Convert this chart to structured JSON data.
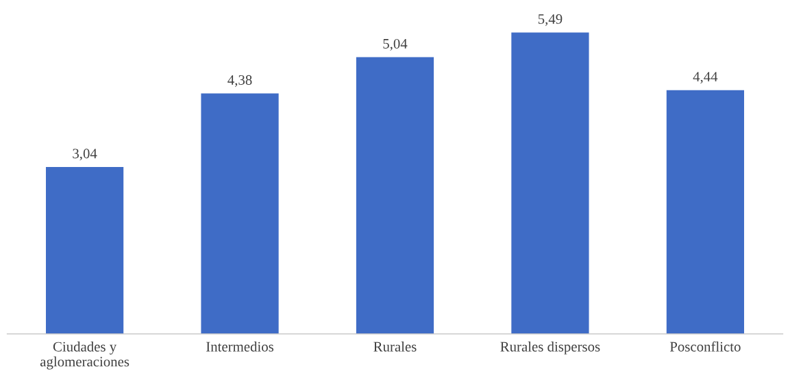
{
  "chart_data": {
    "type": "bar",
    "categories": [
      "Ciudades y\naglomeraciones",
      "Intermedios",
      "Rurales",
      "Rurales dispersos",
      "Posconflicto"
    ],
    "values": [
      3.04,
      4.38,
      5.04,
      5.49,
      4.44
    ],
    "value_labels": [
      "3,04",
      "4,38",
      "5,04",
      "5,49",
      "4,44"
    ],
    "color": "#3f6cc6",
    "grid": false,
    "legend": false,
    "tick_labels": "x"
  }
}
